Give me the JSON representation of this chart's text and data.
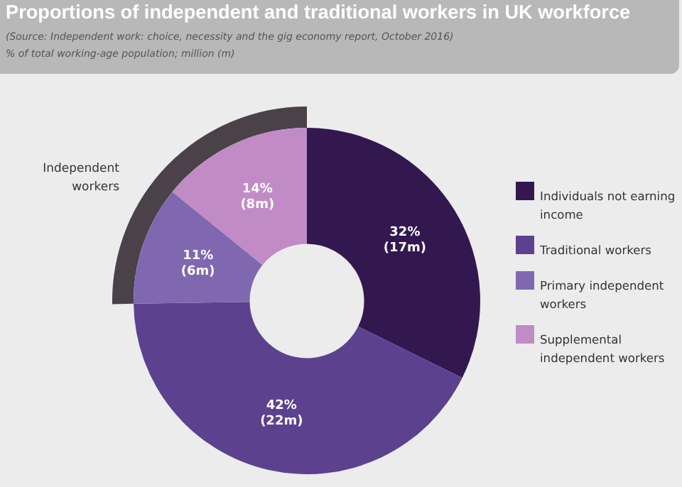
{
  "chart_data": {
    "type": "donut",
    "title": "Proportions of independent and traditional workers in UK workforce",
    "subtitle": "(Source: Independent work: choice, necessity and the gig economy report, October 2016)",
    "ylabel": "% of total working-age population; million (m)",
    "categories": [
      "Individuals not earning income",
      "Traditional workers",
      "Primary independent workers",
      "Supplemental independent workers"
    ],
    "values": [
      32,
      42,
      11,
      14
    ],
    "colors": [
      "#33184f",
      "#5c418f",
      "#7f68b0",
      "#c18bc6"
    ],
    "value_labels": [
      "32% (17m)",
      "42% (22m)",
      "11% (6m)",
      "14% (8m)"
    ],
    "annotations": [
      "Independent workers"
    ],
    "legend": "right"
  }
}
